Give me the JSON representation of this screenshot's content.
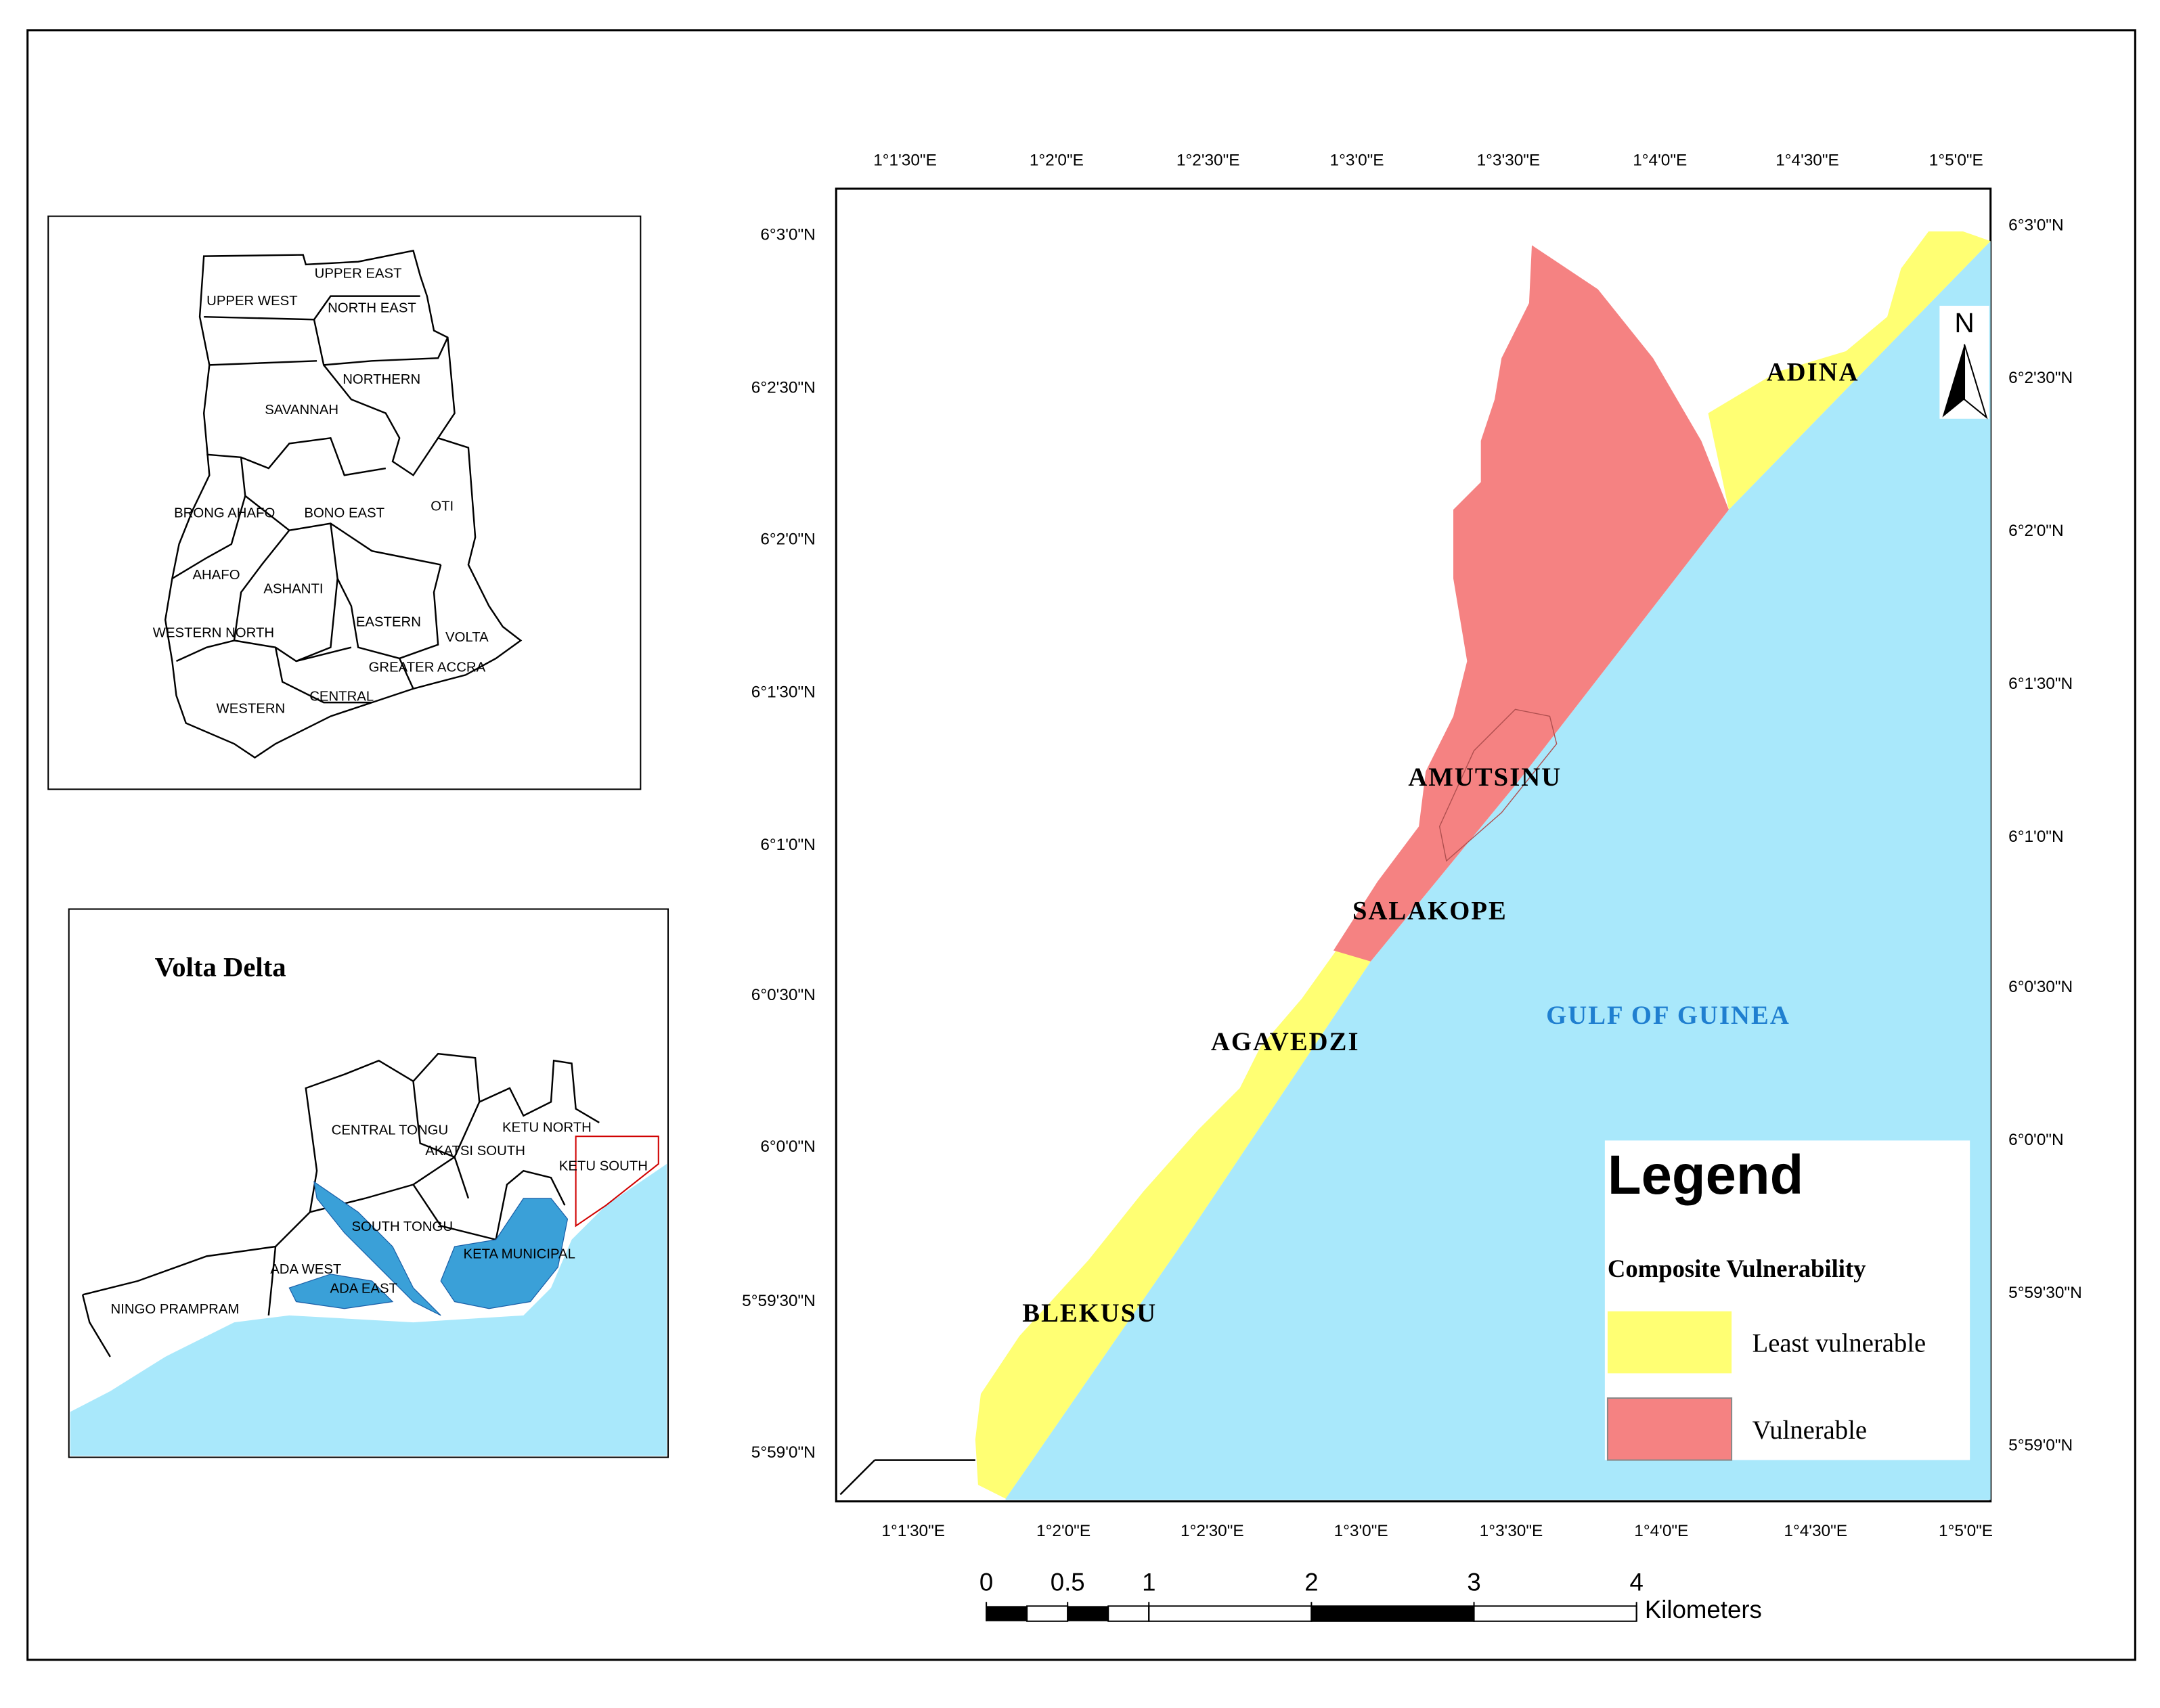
{
  "ghana_map": {
    "regions": [
      "UPPER EAST",
      "UPPER WEST",
      "NORTH EAST",
      "NORTHERN",
      "SAVANNAH",
      "BRONG AHAFO",
      "BONO EAST",
      "OTI",
      "AHAFO",
      "ASHANTI",
      "WESTERN NORTH",
      "EASTERN",
      "VOLTA",
      "GREATER ACCRA",
      "CENTRAL",
      "WESTERN"
    ]
  },
  "volta_delta_map": {
    "title": "Volta Delta",
    "districts": [
      "CENTRAL TONGU",
      "KETU NORTH",
      "AKATSI SOUTH",
      "KETU SOUTH",
      "SOUTH TONGU",
      "KETA MUNICIPAL",
      "ADA WEST",
      "ADA EAST",
      "NINGO PRAMPRAM"
    ]
  },
  "main_map": {
    "longitude_labels": [
      "1°1'30\"E",
      "1°2'0\"E",
      "1°2'30\"E",
      "1°3'0\"E",
      "1°3'30\"E",
      "1°4'0\"E",
      "1°4'30\"E",
      "1°5'0\"E"
    ],
    "latitude_labels": [
      "6°3'0\"N",
      "6°2'30\"N",
      "6°2'0\"N",
      "6°1'30\"N",
      "6°1'0\"N",
      "6°0'30\"N",
      "6°0'0\"N",
      "5°59'30\"N",
      "5°59'0\"N"
    ],
    "places": [
      "ADINA",
      "AMUTSINU",
      "SALAKOPE",
      "AGAVEDZI",
      "BLEKUSU"
    ],
    "sea_label": "GULF OF GUINEA",
    "north_arrow": "N"
  },
  "legend": {
    "title": "Legend",
    "subtitle": "Composite Vulnerability",
    "items": [
      {
        "label": "Least vulnerable",
        "color": "#ffff73"
      },
      {
        "label": "Vulnerable",
        "color": "#f58282"
      }
    ]
  },
  "scale_bar": {
    "ticks": [
      0,
      0.5,
      1,
      2,
      3,
      4
    ],
    "unit": "Kilometers"
  }
}
